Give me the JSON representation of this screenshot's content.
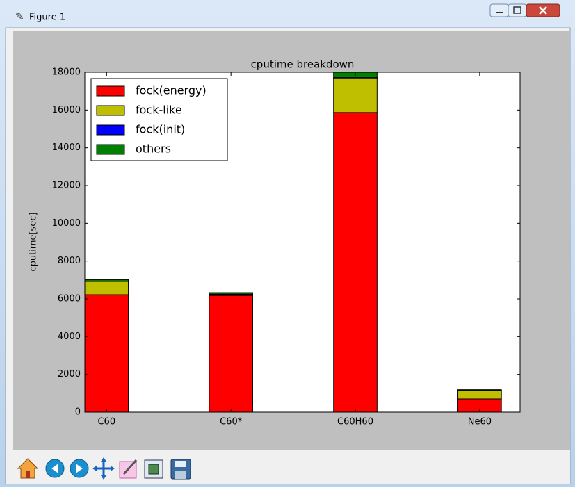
{
  "window": {
    "title": "Figure 1"
  },
  "chart_data": {
    "type": "stacked_bar",
    "title": "cputime breakdown",
    "y_label": "cputime[sec]",
    "categories": [
      "C60",
      "C60*",
      "C60H60",
      "Ne60"
    ],
    "series": [
      {
        "name": "fock(energy)",
        "color": "#ff0000",
        "values": [
          6220,
          6180,
          15870,
          700
        ]
      },
      {
        "name": "fock-like",
        "color": "#bfbf00",
        "values": [
          700,
          60,
          1830,
          440
        ]
      },
      {
        "name": "fock(init)",
        "color": "#0000ff",
        "values": [
          20,
          10,
          20,
          10
        ]
      },
      {
        "name": "others",
        "color": "#008000",
        "values": [
          80,
          80,
          300,
          40
        ]
      }
    ],
    "ylim": [
      0,
      18000
    ],
    "yticks": [
      0,
      2000,
      4000,
      6000,
      8000,
      10000,
      12000,
      14000,
      16000,
      18000
    ],
    "legend": "upper left"
  }
}
